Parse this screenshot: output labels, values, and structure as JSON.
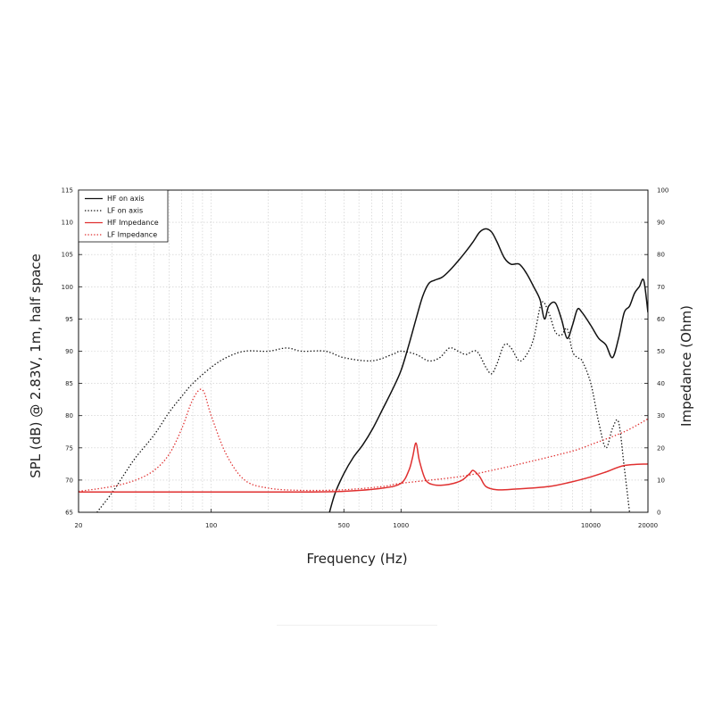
{
  "chart_data": {
    "type": "line",
    "title": "",
    "xlabel": "Frequency (Hz)",
    "ylabel_left": "SPL (dB) @ 2.83V, 1m, half space",
    "ylabel_right": "Impedance (Ohm)",
    "x_scale": "log",
    "xlim": [
      20,
      20000
    ],
    "ylim_left": [
      65,
      115
    ],
    "ylim_right": [
      0,
      100
    ],
    "x_tick_labels": [
      "20",
      "100",
      "500",
      "1000",
      "10000",
      "20000"
    ],
    "y_left_tick_labels": [
      "65",
      "70",
      "75",
      "80",
      "85",
      "90",
      "95",
      "100",
      "105",
      "110",
      "115"
    ],
    "y_right_tick_labels": [
      "0",
      "10",
      "20",
      "30",
      "40",
      "50",
      "60",
      "70",
      "80",
      "90",
      "100"
    ],
    "grid": true,
    "legend_position": "top-left",
    "series": [
      {
        "name": "HF on axis",
        "axis": "left",
        "style": "solid",
        "color": "#111111",
        "points": [
          [
            420,
            65
          ],
          [
            450,
            68
          ],
          [
            500,
            71
          ],
          [
            560,
            73.5
          ],
          [
            630,
            75.5
          ],
          [
            710,
            78
          ],
          [
            800,
            81
          ],
          [
            900,
            84
          ],
          [
            1000,
            87
          ],
          [
            1100,
            91
          ],
          [
            1200,
            95
          ],
          [
            1300,
            98.5
          ],
          [
            1400,
            100.5
          ],
          [
            1500,
            101
          ],
          [
            1650,
            101.5
          ],
          [
            1800,
            102.5
          ],
          [
            2000,
            104
          ],
          [
            2200,
            105.5
          ],
          [
            2400,
            107
          ],
          [
            2600,
            108.5
          ],
          [
            2800,
            109
          ],
          [
            3000,
            108.5
          ],
          [
            3200,
            107
          ],
          [
            3500,
            104.5
          ],
          [
            3800,
            103.5
          ],
          [
            4200,
            103.5
          ],
          [
            4600,
            102
          ],
          [
            5000,
            100
          ],
          [
            5400,
            98
          ],
          [
            5700,
            95
          ],
          [
            6000,
            97
          ],
          [
            6500,
            97.5
          ],
          [
            7000,
            95
          ],
          [
            7500,
            92
          ],
          [
            8000,
            94
          ],
          [
            8500,
            96.5
          ],
          [
            9000,
            96
          ],
          [
            10000,
            94
          ],
          [
            11000,
            92
          ],
          [
            12000,
            91
          ],
          [
            13000,
            89
          ],
          [
            14000,
            92
          ],
          [
            15000,
            96
          ],
          [
            16000,
            97
          ],
          [
            17000,
            99
          ],
          [
            18000,
            100
          ],
          [
            19000,
            101
          ],
          [
            20000,
            96
          ]
        ]
      },
      {
        "name": "LF on axis",
        "axis": "left",
        "style": "dotted",
        "color": "#111111",
        "points": [
          [
            25,
            65
          ],
          [
            30,
            68
          ],
          [
            35,
            71
          ],
          [
            40,
            73.5
          ],
          [
            50,
            77
          ],
          [
            60,
            80.5
          ],
          [
            70,
            83
          ],
          [
            80,
            85
          ],
          [
            100,
            87.5
          ],
          [
            120,
            89
          ],
          [
            150,
            90
          ],
          [
            200,
            90
          ],
          [
            250,
            90.5
          ],
          [
            300,
            90
          ],
          [
            400,
            90
          ],
          [
            500,
            89
          ],
          [
            700,
            88.5
          ],
          [
            900,
            89.5
          ],
          [
            1000,
            90
          ],
          [
            1200,
            89.5
          ],
          [
            1400,
            88.5
          ],
          [
            1600,
            89
          ],
          [
            1800,
            90.5
          ],
          [
            2000,
            90
          ],
          [
            2200,
            89.5
          ],
          [
            2500,
            90
          ],
          [
            2800,
            87.5
          ],
          [
            3000,
            86.5
          ],
          [
            3200,
            88
          ],
          [
            3500,
            91
          ],
          [
            3800,
            90.5
          ],
          [
            4200,
            88.5
          ],
          [
            4600,
            89.5
          ],
          [
            5000,
            92
          ],
          [
            5500,
            97.5
          ],
          [
            6000,
            96
          ],
          [
            6500,
            93
          ],
          [
            7000,
            92.5
          ],
          [
            7500,
            93.5
          ],
          [
            8000,
            90
          ],
          [
            8500,
            89
          ],
          [
            9000,
            88.5
          ],
          [
            10000,
            85
          ],
          [
            11000,
            79
          ],
          [
            12000,
            75
          ],
          [
            13000,
            78
          ],
          [
            14000,
            79
          ],
          [
            15000,
            72
          ],
          [
            16000,
            65
          ]
        ]
      },
      {
        "name": "HF Impedance",
        "axis": "right",
        "style": "solid",
        "color": "#e03030",
        "points": [
          [
            20,
            6.3
          ],
          [
            100,
            6.3
          ],
          [
            300,
            6.3
          ],
          [
            500,
            6.5
          ],
          [
            800,
            7.5
          ],
          [
            1000,
            9
          ],
          [
            1100,
            13
          ],
          [
            1150,
            17
          ],
          [
            1200,
            21.5
          ],
          [
            1250,
            16
          ],
          [
            1350,
            10
          ],
          [
            1500,
            8.5
          ],
          [
            1700,
            8.5
          ],
          [
            1900,
            9
          ],
          [
            2100,
            10
          ],
          [
            2300,
            12
          ],
          [
            2400,
            13
          ],
          [
            2600,
            11
          ],
          [
            2800,
            8
          ],
          [
            3200,
            7
          ],
          [
            4000,
            7.2
          ],
          [
            6000,
            8
          ],
          [
            8000,
            9.5
          ],
          [
            10000,
            11
          ],
          [
            12000,
            12.5
          ],
          [
            15000,
            14.5
          ],
          [
            20000,
            15
          ]
        ]
      },
      {
        "name": "LF Impedance",
        "axis": "right",
        "style": "dotted",
        "color": "#e03030",
        "points": [
          [
            20,
            6.5
          ],
          [
            30,
            8
          ],
          [
            40,
            10
          ],
          [
            50,
            13
          ],
          [
            60,
            18
          ],
          [
            70,
            26
          ],
          [
            80,
            35
          ],
          [
            90,
            38
          ],
          [
            100,
            30
          ],
          [
            120,
            18
          ],
          [
            150,
            10
          ],
          [
            200,
            7.5
          ],
          [
            300,
            6.8
          ],
          [
            500,
            7
          ],
          [
            800,
            8
          ],
          [
            1000,
            9
          ],
          [
            2000,
            11
          ],
          [
            3000,
            13
          ],
          [
            5000,
            16
          ],
          [
            8000,
            19
          ],
          [
            10000,
            21
          ],
          [
            15000,
            25
          ],
          [
            20000,
            29
          ]
        ]
      }
    ]
  }
}
